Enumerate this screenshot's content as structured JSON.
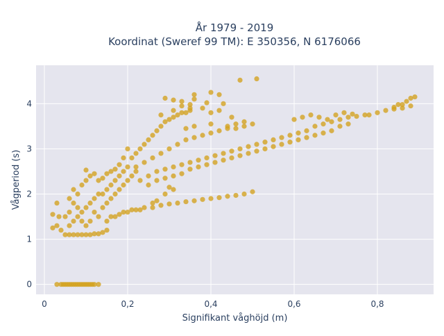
{
  "chart_data": {
    "type": "scatter",
    "title_line1": "År 1979 - 2019",
    "title_line2": "Koordinat (Sweref 99 TM): E 350356, N 6176066",
    "xlabel": "Signifikant våghöjd (m)",
    "ylabel": "Vågperiod (s)",
    "xlim": [
      -0.02,
      0.935
    ],
    "ylim": [
      -0.22,
      4.85
    ],
    "xticks": [
      0,
      0.2,
      0.4,
      0.6,
      0.8
    ],
    "xtick_labels": [
      "0",
      "0,2",
      "0,4",
      "0,6",
      "0,8"
    ],
    "yticks": [
      0,
      1,
      2,
      3,
      4
    ],
    "ytick_labels": [
      "0",
      "1",
      "2",
      "3",
      "4"
    ],
    "grid": true,
    "legend": "none",
    "marker_color": "#d4a11e",
    "background_color": "#e5e5ee",
    "series": [
      {
        "points": [
          [
            0.03,
            0.0
          ],
          [
            0.04,
            0.0
          ],
          [
            0.045,
            0.0
          ],
          [
            0.05,
            0.0
          ],
          [
            0.055,
            0.0
          ],
          [
            0.06,
            0.0
          ],
          [
            0.065,
            0.0
          ],
          [
            0.07,
            0.0
          ],
          [
            0.075,
            0.0
          ],
          [
            0.08,
            0.0
          ],
          [
            0.085,
            0.0
          ],
          [
            0.09,
            0.0
          ],
          [
            0.095,
            0.0
          ],
          [
            0.1,
            0.0
          ],
          [
            0.105,
            0.0
          ],
          [
            0.11,
            0.0
          ],
          [
            0.115,
            0.0
          ],
          [
            0.12,
            0.0
          ],
          [
            0.13,
            0.0
          ],
          [
            0.02,
            1.55
          ],
          [
            0.02,
            1.25
          ],
          [
            0.03,
            1.3
          ],
          [
            0.035,
            1.5
          ],
          [
            0.03,
            1.8
          ],
          [
            0.04,
            1.2
          ],
          [
            0.05,
            1.1
          ],
          [
            0.06,
            1.1
          ],
          [
            0.07,
            1.1
          ],
          [
            0.08,
            1.1
          ],
          [
            0.09,
            1.1
          ],
          [
            0.1,
            1.1
          ],
          [
            0.11,
            1.1
          ],
          [
            0.12,
            1.12
          ],
          [
            0.13,
            1.12
          ],
          [
            0.14,
            1.15
          ],
          [
            0.15,
            1.2
          ],
          [
            0.05,
            1.5
          ],
          [
            0.06,
            1.6
          ],
          [
            0.07,
            1.8
          ],
          [
            0.08,
            2.0
          ],
          [
            0.09,
            2.2
          ],
          [
            0.1,
            2.3
          ],
          [
            0.11,
            2.4
          ],
          [
            0.12,
            2.45
          ],
          [
            0.1,
            2.53
          ],
          [
            0.13,
            2.3
          ],
          [
            0.14,
            2.35
          ],
          [
            0.15,
            2.45
          ],
          [
            0.16,
            2.5
          ],
          [
            0.17,
            2.55
          ],
          [
            0.18,
            2.65
          ],
          [
            0.19,
            2.8
          ],
          [
            0.2,
            3.0
          ],
          [
            0.06,
            1.3
          ],
          [
            0.07,
            1.4
          ],
          [
            0.08,
            1.5
          ],
          [
            0.09,
            1.6
          ],
          [
            0.1,
            1.7
          ],
          [
            0.11,
            1.8
          ],
          [
            0.12,
            1.9
          ],
          [
            0.13,
            2.0
          ],
          [
            0.14,
            2.0
          ],
          [
            0.15,
            2.1
          ],
          [
            0.16,
            2.2
          ],
          [
            0.17,
            2.3
          ],
          [
            0.18,
            2.4
          ],
          [
            0.19,
            2.5
          ],
          [
            0.2,
            2.6
          ],
          [
            0.06,
            1.9
          ],
          [
            0.07,
            2.1
          ],
          [
            0.08,
            1.7
          ],
          [
            0.09,
            1.4
          ],
          [
            0.1,
            1.3
          ],
          [
            0.11,
            1.4
          ],
          [
            0.12,
            1.6
          ],
          [
            0.13,
            1.5
          ],
          [
            0.14,
            1.7
          ],
          [
            0.15,
            1.8
          ],
          [
            0.16,
            1.9
          ],
          [
            0.17,
            2.0
          ],
          [
            0.18,
            2.1
          ],
          [
            0.19,
            2.2
          ],
          [
            0.2,
            2.3
          ],
          [
            0.21,
            2.4
          ],
          [
            0.22,
            2.5
          ],
          [
            0.15,
            1.4
          ],
          [
            0.16,
            1.5
          ],
          [
            0.17,
            1.5
          ],
          [
            0.18,
            1.55
          ],
          [
            0.19,
            1.6
          ],
          [
            0.2,
            1.6
          ],
          [
            0.21,
            1.65
          ],
          [
            0.22,
            1.65
          ],
          [
            0.23,
            1.65
          ],
          [
            0.24,
            1.7
          ],
          [
            0.26,
            1.7
          ],
          [
            0.28,
            1.75
          ],
          [
            0.3,
            1.78
          ],
          [
            0.32,
            1.8
          ],
          [
            0.34,
            1.83
          ],
          [
            0.36,
            1.85
          ],
          [
            0.38,
            1.88
          ],
          [
            0.4,
            1.9
          ],
          [
            0.42,
            1.92
          ],
          [
            0.44,
            1.95
          ],
          [
            0.46,
            1.97
          ],
          [
            0.48,
            2.0
          ],
          [
            0.5,
            2.05
          ],
          [
            0.21,
            2.8
          ],
          [
            0.22,
            2.9
          ],
          [
            0.23,
            3.0
          ],
          [
            0.24,
            3.1
          ],
          [
            0.25,
            3.2
          ],
          [
            0.26,
            3.3
          ],
          [
            0.27,
            3.4
          ],
          [
            0.28,
            3.5
          ],
          [
            0.29,
            3.6
          ],
          [
            0.3,
            3.65
          ],
          [
            0.31,
            3.7
          ],
          [
            0.32,
            3.75
          ],
          [
            0.33,
            3.8
          ],
          [
            0.34,
            3.8
          ],
          [
            0.35,
            3.85
          ],
          [
            0.22,
            2.6
          ],
          [
            0.24,
            2.7
          ],
          [
            0.26,
            2.8
          ],
          [
            0.28,
            2.9
          ],
          [
            0.3,
            3.0
          ],
          [
            0.32,
            3.1
          ],
          [
            0.34,
            3.2
          ],
          [
            0.36,
            3.25
          ],
          [
            0.38,
            3.3
          ],
          [
            0.4,
            3.35
          ],
          [
            0.42,
            3.4
          ],
          [
            0.44,
            3.45
          ],
          [
            0.46,
            3.45
          ],
          [
            0.48,
            3.5
          ],
          [
            0.23,
            2.3
          ],
          [
            0.25,
            2.4
          ],
          [
            0.27,
            2.5
          ],
          [
            0.29,
            2.55
          ],
          [
            0.31,
            2.6
          ],
          [
            0.33,
            2.65
          ],
          [
            0.35,
            2.7
          ],
          [
            0.37,
            2.75
          ],
          [
            0.39,
            2.8
          ],
          [
            0.41,
            2.85
          ],
          [
            0.43,
            2.9
          ],
          [
            0.45,
            2.95
          ],
          [
            0.47,
            3.0
          ],
          [
            0.49,
            3.05
          ],
          [
            0.51,
            3.1
          ],
          [
            0.53,
            3.15
          ],
          [
            0.55,
            3.2
          ],
          [
            0.57,
            3.25
          ],
          [
            0.59,
            3.3
          ],
          [
            0.61,
            3.35
          ],
          [
            0.63,
            3.4
          ],
          [
            0.65,
            3.5
          ],
          [
            0.67,
            3.55
          ],
          [
            0.69,
            3.6
          ],
          [
            0.71,
            3.65
          ],
          [
            0.73,
            3.7
          ],
          [
            0.75,
            3.72
          ],
          [
            0.77,
            3.75
          ],
          [
            0.25,
            2.2
          ],
          [
            0.27,
            2.3
          ],
          [
            0.29,
            2.35
          ],
          [
            0.31,
            2.4
          ],
          [
            0.33,
            2.45
          ],
          [
            0.35,
            2.55
          ],
          [
            0.37,
            2.6
          ],
          [
            0.39,
            2.65
          ],
          [
            0.41,
            2.7
          ],
          [
            0.43,
            2.75
          ],
          [
            0.45,
            2.8
          ],
          [
            0.47,
            2.85
          ],
          [
            0.49,
            2.9
          ],
          [
            0.51,
            2.95
          ],
          [
            0.53,
            3.0
          ],
          [
            0.55,
            3.05
          ],
          [
            0.57,
            3.1
          ],
          [
            0.59,
            3.15
          ],
          [
            0.61,
            3.2
          ],
          [
            0.63,
            3.25
          ],
          [
            0.65,
            3.3
          ],
          [
            0.67,
            3.35
          ],
          [
            0.69,
            3.4
          ],
          [
            0.26,
            1.8
          ],
          [
            0.27,
            1.85
          ],
          [
            0.29,
            2.0
          ],
          [
            0.31,
            2.1
          ],
          [
            0.3,
            2.15
          ],
          [
            0.28,
            3.75
          ],
          [
            0.31,
            3.85
          ],
          [
            0.33,
            3.95
          ],
          [
            0.36,
            4.1
          ],
          [
            0.38,
            3.9
          ],
          [
            0.4,
            3.8
          ],
          [
            0.42,
            3.85
          ],
          [
            0.45,
            3.7
          ],
          [
            0.48,
            3.6
          ],
          [
            0.5,
            3.55
          ],
          [
            0.34,
            3.45
          ],
          [
            0.36,
            3.5
          ],
          [
            0.4,
            3.55
          ],
          [
            0.44,
            3.5
          ],
          [
            0.46,
            3.55
          ],
          [
            0.29,
            4.12
          ],
          [
            0.31,
            4.08
          ],
          [
            0.33,
            4.05
          ],
          [
            0.35,
            3.98
          ],
          [
            0.39,
            4.02
          ],
          [
            0.43,
            4.0
          ],
          [
            0.4,
            4.25
          ],
          [
            0.42,
            4.2
          ],
          [
            0.47,
            4.52
          ],
          [
            0.51,
            4.55
          ],
          [
            0.36,
            4.2
          ],
          [
            0.35,
            3.9
          ],
          [
            0.6,
            3.65
          ],
          [
            0.62,
            3.7
          ],
          [
            0.64,
            3.75
          ],
          [
            0.66,
            3.7
          ],
          [
            0.68,
            3.65
          ],
          [
            0.7,
            3.75
          ],
          [
            0.72,
            3.8
          ],
          [
            0.74,
            3.77
          ],
          [
            0.71,
            3.5
          ],
          [
            0.73,
            3.55
          ],
          [
            0.78,
            3.75
          ],
          [
            0.8,
            3.8
          ],
          [
            0.82,
            3.85
          ],
          [
            0.84,
            3.92
          ],
          [
            0.85,
            3.98
          ],
          [
            0.87,
            4.05
          ],
          [
            0.88,
            4.12
          ],
          [
            0.89,
            4.15
          ],
          [
            0.84,
            3.88
          ],
          [
            0.86,
            3.9
          ],
          [
            0.86,
            3.98
          ],
          [
            0.88,
            3.95
          ]
        ]
      }
    ]
  }
}
